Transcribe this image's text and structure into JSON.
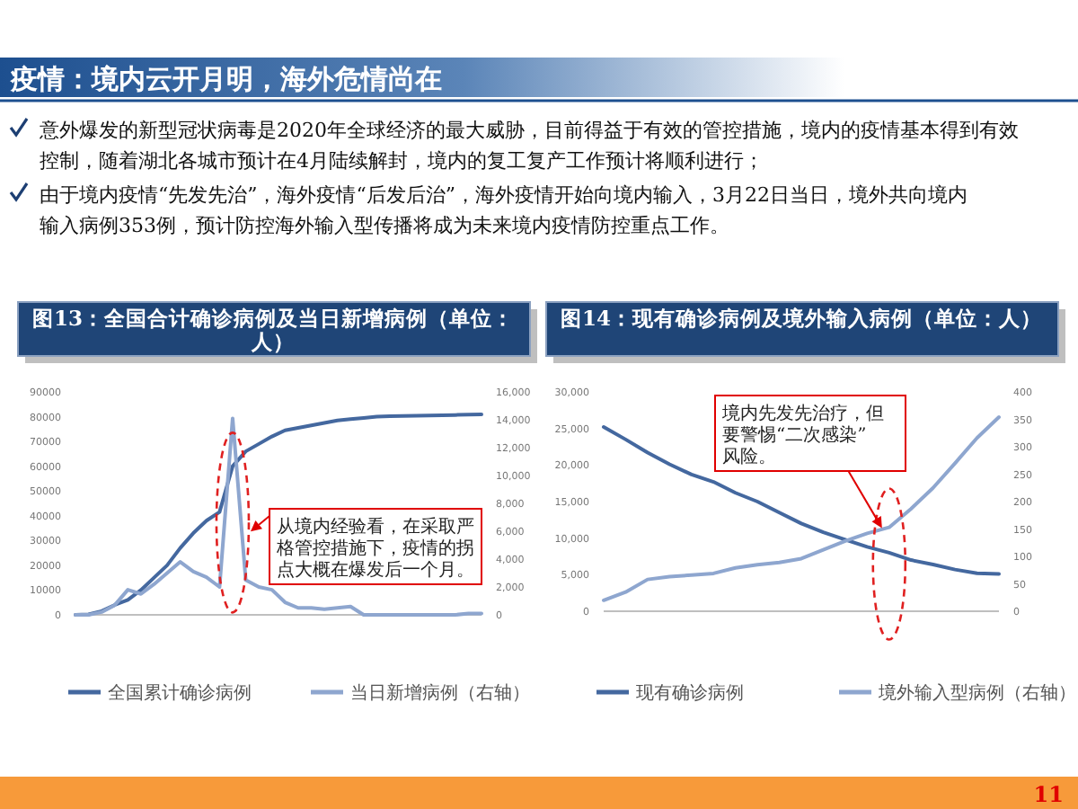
{
  "chart_data": [
    {
      "type": "other",
      "title": "疫情：境内云开月明，海外危情尚在",
      "annotations": [
        "意外爆发的新型冠状病毒是2020年全球经济的最大威胁，目前得益于有效的管控措施，境内的疫情基本得到有效控制，随着湖北各城市预计在4月陆续解封，境内的复工复产工作预计将顺利进行；",
        "由于境内疫情“先发先治”，海外疫情“后发后治”，海外疫情开始向境内输入，3月22日当日，境外共向境内输入病例353例，预计防控海外输入型传播将成为未来境内疫情防控重点工作。",
        "11"
      ]
    },
    {
      "type": "line",
      "title": "图13：全国合计确诊病例及当日新增病例（单位：人）",
      "categories": [
        null,
        null,
        null,
        null,
        null,
        null,
        null,
        null,
        null,
        null,
        null,
        null,
        null,
        null,
        null,
        null,
        null,
        null,
        null,
        null,
        null,
        null,
        null,
        null,
        null,
        null,
        null,
        null,
        null,
        null,
        null,
        null
      ],
      "series": [
        {
          "name": "全国累计确诊病例",
          "color": "#44689f",
          "values": [
            0,
            200,
            1500,
            4000,
            6000,
            10000,
            15000,
            20000,
            27000,
            33000,
            38000,
            41500,
            60000,
            66000,
            69000,
            72000,
            74500,
            75500,
            76500,
            77500,
            78500,
            79000,
            79500,
            80000,
            80200,
            80300,
            80400,
            80500,
            80600,
            80700,
            80800,
            80900
          ]
        },
        {
          "name": "当日新增病例（右轴）",
          "color": "#8ea6cf",
          "axis": "y2",
          "values": [
            0,
            0,
            200,
            700,
            1800,
            1500,
            2200,
            3000,
            3800,
            3100,
            2700,
            2000,
            14100,
            2500,
            2000,
            1800,
            900,
            500,
            500,
            400,
            500,
            600,
            0,
            0,
            0,
            0,
            0,
            0,
            0,
            0,
            100,
            100
          ]
        }
      ],
      "ylim": [
        0,
        90000
      ],
      "yticks": [
        0,
        10000,
        20000,
        30000,
        40000,
        50000,
        60000,
        70000,
        80000,
        90000
      ],
      "y2lim": [
        0,
        16000
      ],
      "y2ticks": [
        0,
        {
          "value": 2000,
          "label": "2,000"
        },
        {
          "value": 4000,
          "label": "4,000"
        },
        {
          "value": 6000,
          "label": "6,000"
        },
        {
          "value": 8000,
          "label": "8,000"
        },
        {
          "value": 10000,
          "label": "10,000"
        },
        {
          "value": 12000,
          "label": "12,000"
        },
        {
          "value": 14000,
          "label": "14,000"
        },
        {
          "value": 16000,
          "label": "16,000"
        }
      ],
      "legend": "bottom",
      "annotations": [
        "从境内经验看，在采取严格管控措施下，疫情的拐点大概在爆发后一个月。"
      ]
    },
    {
      "type": "line",
      "title": "图14：现有确诊病例及境外输入病例（单位：人）",
      "categories": [
        null,
        null,
        null,
        null,
        null,
        null,
        null,
        null,
        null,
        null,
        null,
        null,
        null,
        null,
        null,
        null,
        null,
        null,
        null
      ],
      "series": [
        {
          "name": "现有确诊病例",
          "color": "#44689f",
          "values": [
            25200,
            23500,
            21700,
            20100,
            18700,
            17700,
            16200,
            15000,
            13500,
            12000,
            10800,
            9800,
            8800,
            8000,
            7000,
            6400,
            5700,
            5200,
            5100
          ]
        },
        {
          "name": "境外输入型病例（右轴）",
          "color": "#8ea6cf",
          "axis": "y2",
          "values": [
            20,
            35,
            58,
            63,
            66,
            69,
            79,
            85,
            89,
            96,
            112,
            128,
            142,
            153,
            187,
            225,
            270,
            316,
            354
          ]
        }
      ],
      "ylim": [
        0,
        30000
      ],
      "yticks": [
        0,
        {
          "value": 5000,
          "label": "5,000"
        },
        {
          "value": 10000,
          "label": "10,000"
        },
        {
          "value": 15000,
          "label": "15,000"
        },
        {
          "value": 20000,
          "label": "20,000"
        },
        {
          "value": 25000,
          "label": "25,000"
        },
        {
          "value": 30000,
          "label": "30,000"
        }
      ],
      "y2lim": [
        0,
        400
      ],
      "y2ticks": [
        0,
        50,
        100,
        150,
        200,
        250,
        300,
        350,
        400
      ],
      "legend": "bottom",
      "annotations": [
        "境内先发先治疗，但要警惕“二次感染”风险。"
      ]
    }
  ]
}
